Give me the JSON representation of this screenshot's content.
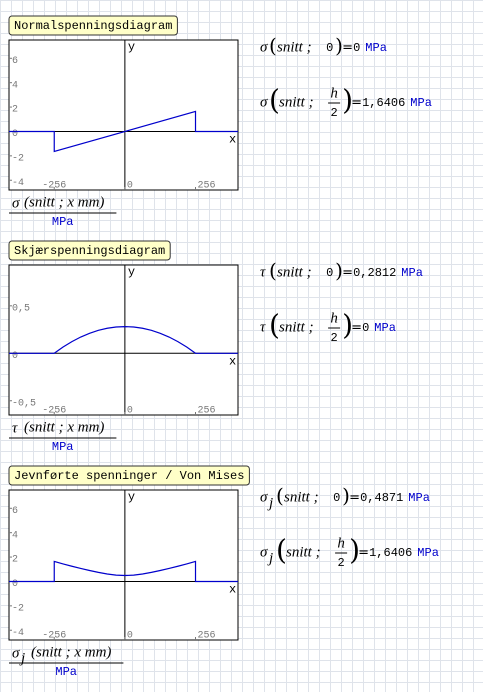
{
  "chart_data": [
    {
      "type": "line",
      "title": "Normalspenningsdiagram",
      "xlabel": "x",
      "ylabel": "y",
      "xlim": [
        -420,
        410
      ],
      "ylim": [
        -4.8,
        7.5
      ],
      "xticks": [
        -256,
        0,
        256
      ],
      "yticks": [
        6,
        4,
        2,
        0,
        -2,
        -4
      ],
      "series": [
        {
          "color": "#0000cc",
          "x": [
            -420,
            -256,
            -256,
            256,
            256,
            410
          ],
          "values": [
            0,
            0,
            -1.6406,
            1.6406,
            0,
            0
          ]
        }
      ],
      "expression": {
        "func": "σ",
        "args": "(snitt ; x mm)",
        "unit": "MPa"
      },
      "equations": [
        {
          "func": "σ",
          "param": "snitt ;",
          "arg": "0",
          "result": "0",
          "unit": "MPa"
        },
        {
          "func": "σ",
          "param": "snitt ;",
          "arg_num": "h",
          "arg_den": "2",
          "result": "1,6406",
          "unit": "MPa"
        }
      ]
    },
    {
      "type": "line",
      "title": "Skjærspenningsdiagram",
      "xlabel": "x",
      "ylabel": "y",
      "xlim": [
        -420,
        410
      ],
      "ylim": [
        -0.65,
        0.93
      ],
      "xticks": [
        -256,
        0,
        256
      ],
      "yticks": [
        {
          "value": 0.5,
          "label": "0,5"
        },
        0,
        {
          "value": -0.5,
          "label": "-0,5"
        }
      ],
      "series": [
        {
          "color": "#0000cc",
          "x": [
            -420,
            -256,
            -224,
            -192,
            -160,
            -128,
            -96,
            -64,
            -32,
            0,
            32,
            64,
            96,
            128,
            160,
            192,
            224,
            256,
            410
          ],
          "values": [
            0,
            0,
            0.0659,
            0.123,
            0.1714,
            0.2109,
            0.2417,
            0.2636,
            0.2768,
            0.2812,
            0.2768,
            0.2636,
            0.2417,
            0.2109,
            0.1714,
            0.123,
            0.0659,
            0,
            0
          ]
        }
      ],
      "expression": {
        "func": "τ",
        "args": "(snitt ; x mm)",
        "unit": "MPa"
      },
      "equations": [
        {
          "func": "τ",
          "param": "snitt ;",
          "arg": "0",
          "result": "0,2812",
          "unit": "MPa"
        },
        {
          "func": "τ",
          "param": "snitt ;",
          "arg_num": "h",
          "arg_den": "2",
          "result": "0",
          "unit": "MPa"
        }
      ]
    },
    {
      "type": "line",
      "title": "Jevnførte spenninger / Von Mises",
      "xlabel": "x",
      "ylabel": "y",
      "xlim": [
        -420,
        410
      ],
      "ylim": [
        -4.8,
        7.5
      ],
      "xticks": [
        -256,
        0,
        256
      ],
      "yticks": [
        6,
        4,
        2,
        0,
        -2,
        -4
      ],
      "series": [
        {
          "color": "#0000cc",
          "x": [
            -420,
            -256,
            -256,
            -224,
            -192,
            -160,
            -128,
            -96,
            -64,
            -32,
            0,
            32,
            64,
            96,
            128,
            160,
            192,
            224,
            256,
            256,
            410
          ],
          "values": [
            0,
            0,
            1.6406,
            1.44,
            1.2488,
            1.0675,
            0.898,
            0.7441,
            0.6138,
            0.5215,
            0.4871,
            0.5215,
            0.6138,
            0.7441,
            0.898,
            1.0675,
            1.2488,
            1.44,
            1.6406,
            0,
            0
          ]
        }
      ],
      "expression": {
        "func": "σ",
        "sub": "j",
        "args": "(snitt ; x mm)",
        "unit": "MPa"
      },
      "equations": [
        {
          "func": "σ",
          "sub": "j",
          "param": "snitt ;",
          "arg": "0",
          "result": "0,4871",
          "unit": "MPa"
        },
        {
          "func": "σ",
          "sub": "j",
          "param": "snitt ;",
          "arg_num": "h",
          "arg_den": "2",
          "result": "1,6406",
          "unit": "MPa"
        }
      ]
    }
  ]
}
